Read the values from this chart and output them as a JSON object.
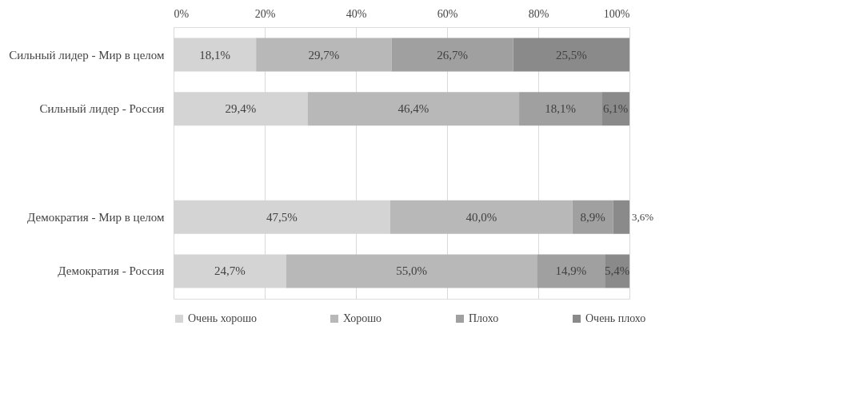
{
  "chart_data": {
    "type": "bar",
    "orientation": "horizontal",
    "stacked": true,
    "categories": [
      "Сильный лидер - Мир в целом",
      "Сильный лидер - Россия",
      null,
      "Демократия - Мир в целом",
      "Демократия - Россия"
    ],
    "series": [
      {
        "name": "Очень хорошо",
        "color": "#d4d4d4",
        "values": [
          18.1,
          29.4,
          null,
          47.5,
          24.7
        ],
        "value_labels": [
          "18,1%",
          "29,4%",
          null,
          "47,5%",
          "24,7%"
        ]
      },
      {
        "name": "Хорошо",
        "color": "#b8b8b8",
        "values": [
          29.7,
          46.4,
          null,
          40.0,
          55.0
        ],
        "value_labels": [
          "29,7%",
          "46,4%",
          null,
          "40,0%",
          "55,0%"
        ]
      },
      {
        "name": "Плохо",
        "color": "#a0a0a0",
        "values": [
          26.7,
          18.1,
          null,
          8.9,
          14.9
        ],
        "value_labels": [
          "26,7%",
          "18,1%",
          null,
          "8,9%",
          "14,9%"
        ]
      },
      {
        "name": "Очень плохо",
        "color": "#8a8a8a",
        "values": [
          25.5,
          6.1,
          null,
          3.6,
          5.4
        ],
        "value_labels": [
          "25,5%",
          "6,1%",
          null,
          "3,6%",
          "5,4%"
        ]
      }
    ],
    "xlim": [
      0,
      100
    ],
    "xticks": [
      {
        "value": 0,
        "label": "0%"
      },
      {
        "value": 20,
        "label": "20%"
      },
      {
        "value": 40,
        "label": "40%"
      },
      {
        "value": 60,
        "label": "60%"
      },
      {
        "value": 80,
        "label": "80%"
      },
      {
        "value": 100,
        "label": "100%"
      }
    ],
    "grid": "x",
    "legend": "bottom"
  }
}
